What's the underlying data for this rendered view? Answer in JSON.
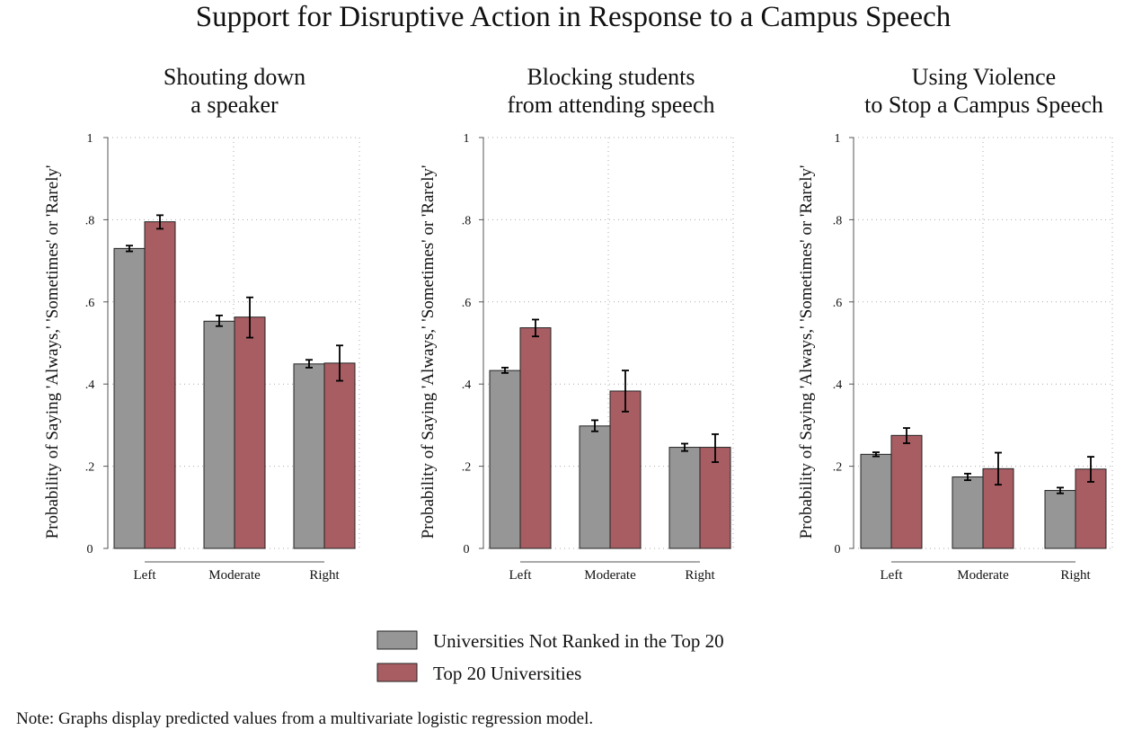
{
  "title": "Support for Disruptive Action in Response to a Campus Speech",
  "note": "Note: Graphs display predicted values from a multivariate logistic regression model.",
  "colors": {
    "series1": "#969696",
    "series2": "#a85d63",
    "errorbar": "#000000",
    "grid": "#aaaaaa"
  },
  "legend": [
    "Universities Not Ranked in the Top 20",
    "Top 20 Universities"
  ],
  "chart_data": [
    {
      "type": "bar",
      "title_lines": [
        "Shouting down",
        "a speaker"
      ],
      "ylabel": "Probability of Saying 'Always,' 'Sometimes' or 'Rarely'",
      "categories": [
        "Left",
        "Moderate",
        "Right"
      ],
      "ylim": [
        0,
        1
      ],
      "yticks": [
        0,
        0.2,
        0.4,
        0.6,
        0.8,
        1
      ],
      "ytick_labels": [
        "0",
        ".2",
        ".4",
        ".6",
        ".8",
        "1"
      ],
      "grid": true,
      "series": [
        {
          "name": "Universities Not Ranked in the Top 20",
          "values": [
            0.73,
            0.553,
            0.449
          ],
          "err_low": [
            0.723,
            0.541,
            0.44
          ],
          "err_high": [
            0.737,
            0.567,
            0.459
          ]
        },
        {
          "name": "Top 20 Universities",
          "values": [
            0.795,
            0.563,
            0.451
          ],
          "err_low": [
            0.778,
            0.513,
            0.408
          ],
          "err_high": [
            0.811,
            0.611,
            0.494
          ]
        }
      ]
    },
    {
      "type": "bar",
      "title_lines": [
        "Blocking students",
        "from attending speech"
      ],
      "ylabel": "Probability of Saying 'Always,' 'Sometimes' or 'Rarely'",
      "categories": [
        "Left",
        "Moderate",
        "Right"
      ],
      "ylim": [
        0,
        1
      ],
      "yticks": [
        0,
        0.2,
        0.4,
        0.6,
        0.8,
        1
      ],
      "ytick_labels": [
        "0",
        ".2",
        ".4",
        ".6",
        ".8",
        "1"
      ],
      "grid": true,
      "series": [
        {
          "name": "Universities Not Ranked in the Top 20",
          "values": [
            0.433,
            0.298,
            0.246
          ],
          "err_low": [
            0.427,
            0.285,
            0.237
          ],
          "err_high": [
            0.44,
            0.312,
            0.255
          ]
        },
        {
          "name": "Top 20 Universities",
          "values": [
            0.537,
            0.383,
            0.246
          ],
          "err_low": [
            0.516,
            0.333,
            0.21
          ],
          "err_high": [
            0.557,
            0.433,
            0.278
          ]
        }
      ]
    },
    {
      "type": "bar",
      "title_lines": [
        "Using Violence",
        "to Stop a Campus Speech"
      ],
      "ylabel": "Probability of Saying 'Always,' 'Sometimes' or 'Rarely'",
      "categories": [
        "Left",
        "Moderate",
        "Right"
      ],
      "ylim": [
        0,
        1
      ],
      "yticks": [
        0,
        0.2,
        0.4,
        0.6,
        0.8,
        1
      ],
      "ytick_labels": [
        "0",
        ".2",
        ".4",
        ".6",
        ".8",
        "1"
      ],
      "grid": true,
      "series": [
        {
          "name": "Universities Not Ranked in the Top 20",
          "values": [
            0.229,
            0.174,
            0.141
          ],
          "err_low": [
            0.224,
            0.166,
            0.134
          ],
          "err_high": [
            0.234,
            0.182,
            0.148
          ]
        },
        {
          "name": "Top 20 Universities",
          "values": [
            0.275,
            0.194,
            0.193
          ],
          "err_low": [
            0.256,
            0.155,
            0.162
          ],
          "err_high": [
            0.293,
            0.233,
            0.223
          ]
        }
      ]
    }
  ]
}
